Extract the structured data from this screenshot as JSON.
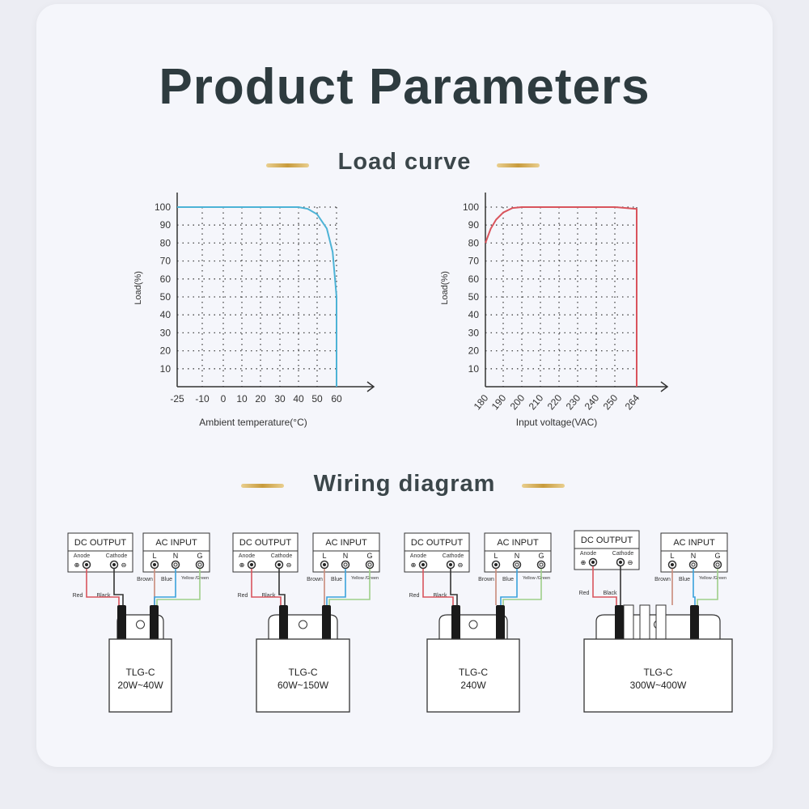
{
  "page": {
    "title": "Product Parameters"
  },
  "load_curve": {
    "heading": "Load curve"
  },
  "wiring": {
    "heading": "Wiring diagram",
    "panels": [
      {
        "dc_label": "DC OUTPUT",
        "ac_label": "AC INPUT",
        "anode": "Anode",
        "cathode": "Cathode",
        "l": "L",
        "n": "N",
        "g": "G",
        "wire_labels": [
          "Red",
          "Black",
          "Brown",
          "Blue",
          "Yellow /Green"
        ],
        "model": "TLG-C",
        "power": "20W~40W"
      },
      {
        "dc_label": "DC OUTPUT",
        "ac_label": "AC INPUT",
        "anode": "Anode",
        "cathode": "Cathode",
        "l": "L",
        "n": "N",
        "g": "G",
        "wire_labels": [
          "Red",
          "Black",
          "Brown",
          "Blue",
          "Yellow /Green"
        ],
        "model": "TLG-C",
        "power": "60W~150W"
      },
      {
        "dc_label": "DC OUTPUT",
        "ac_label": "AC INPUT",
        "anode": "Anode",
        "cathode": "Cathode",
        "l": "L",
        "n": "N",
        "g": "G",
        "wire_labels": [
          "Red",
          "Black",
          "Brown",
          "Blue",
          "Yellow /Green"
        ],
        "model": "TLG-C",
        "power": "240W"
      },
      {
        "dc_label": "DC OUTPUT",
        "ac_label": "AC INPUT",
        "anode": "Anode",
        "cathode": "Cathode",
        "l": "L",
        "n": "N",
        "g": "G",
        "wire_labels": [
          "Red",
          "Black",
          "Brown",
          "Blue",
          "Yellow /Green"
        ],
        "model": "TLG-C",
        "power": "300W~400W"
      }
    ],
    "colors": {
      "red": "#d9545c",
      "black": "#333333",
      "brown": "#c98a7a",
      "blue": "#3aa2dc",
      "green": "#9fcf8a"
    }
  },
  "chart_data": [
    {
      "type": "line",
      "xlabel": "Ambient temperature(°C)",
      "ylabel": "Load(%)",
      "x_ticks": [
        "-25",
        "-10",
        "0",
        "10",
        "20",
        "30",
        "40",
        "50",
        "60"
      ],
      "y_ticks": [
        10,
        20,
        30,
        40,
        50,
        60,
        70,
        80,
        90,
        100
      ],
      "ylim": [
        0,
        100
      ],
      "grid": true,
      "color": "#4db3d6",
      "x": [
        -25,
        40,
        45,
        50,
        55,
        58,
        60,
        60
      ],
      "y": [
        100,
        100,
        99,
        96,
        88,
        75,
        50,
        0
      ]
    },
    {
      "type": "line",
      "xlabel": "Input voltage(VAC)",
      "ylabel": "Load(%)",
      "x_ticks": [
        "180",
        "190",
        "200",
        "210",
        "220",
        "230",
        "240",
        "250",
        "264"
      ],
      "y_ticks": [
        10,
        20,
        30,
        40,
        50,
        60,
        70,
        80,
        90,
        100
      ],
      "ylim": [
        0,
        100
      ],
      "grid": true,
      "color": "#d9545c",
      "x": [
        180,
        183,
        186,
        190,
        195,
        200,
        250,
        264,
        264
      ],
      "y": [
        80,
        88,
        93,
        97,
        99.5,
        100,
        100,
        99,
        0
      ]
    }
  ]
}
